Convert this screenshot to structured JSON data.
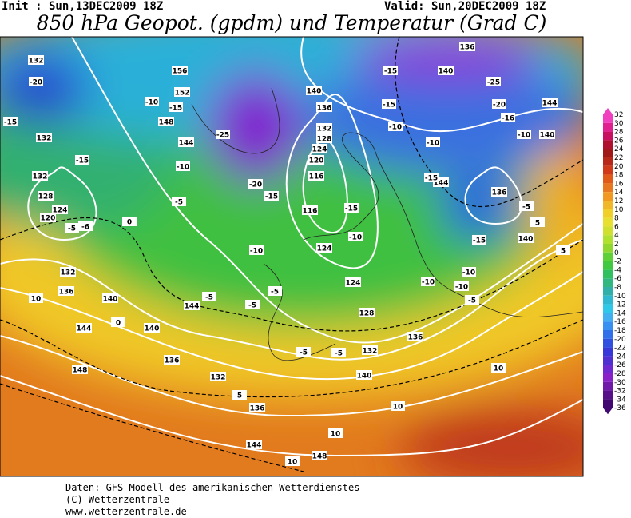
{
  "header": {
    "init": "Init : Sun,13DEC2009 18Z",
    "valid": "Valid: Sun,20DEC2009 18Z",
    "title": "850 hPa Geopot. (gpdm) und Temperatur (Grad C)"
  },
  "colorbar": {
    "labels": [
      32,
      30,
      28,
      26,
      24,
      22,
      20,
      18,
      16,
      14,
      12,
      10,
      8,
      6,
      4,
      2,
      0,
      -2,
      -4,
      -6,
      -8,
      -10,
      -12,
      -14,
      -16,
      -18,
      -20,
      -22,
      -24,
      -26,
      -28,
      -30,
      -32,
      -34,
      -36
    ]
  },
  "map": {
    "geopotential_labels": [
      132,
      156,
      152,
      148,
      144,
      140,
      136,
      132,
      128,
      124,
      120,
      116,
      116,
      124,
      124,
      128,
      132,
      136,
      140,
      140,
      144,
      144,
      140,
      136,
      132,
      132,
      128,
      124,
      120,
      132,
      136,
      140,
      144,
      144,
      140,
      136,
      132,
      136,
      144,
      148,
      148,
      140,
      136
    ],
    "temperature_labels": [
      -20,
      -15,
      -15,
      -10,
      -15,
      -25,
      -10,
      -5,
      -20,
      -15,
      -10,
      -5,
      -5,
      -5,
      -5,
      -5,
      -10,
      -15,
      -10,
      -10,
      -15,
      -15,
      -20,
      -25,
      -16,
      -10,
      -15,
      -15,
      -5,
      -10,
      -10,
      -10,
      -5,
      5,
      5,
      0,
      0,
      -5,
      5,
      10,
      10,
      10,
      10,
      10,
      -6
    ]
  },
  "footer": {
    "lines": [
      "Daten: GFS-Modell des amerikanischen Wetterdienstes",
      "(C) Wetterzentrale",
      "www.wetterzentrale.de"
    ]
  }
}
